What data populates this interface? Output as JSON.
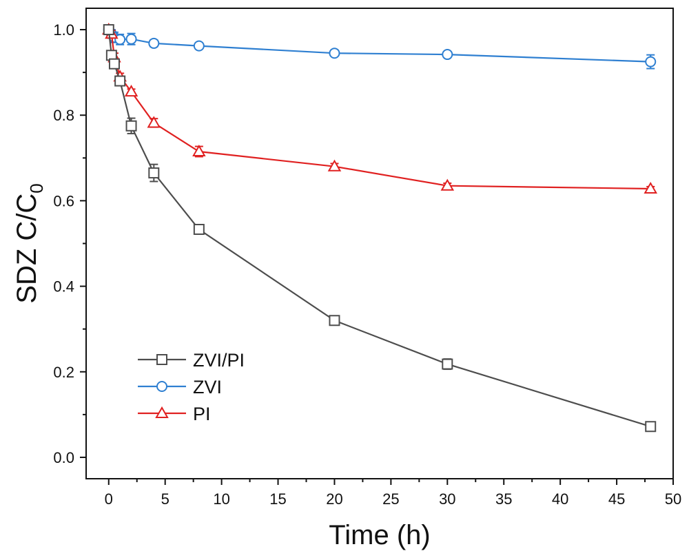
{
  "chart_data": {
    "type": "line",
    "title": "",
    "xlabel": "Time (h)",
    "ylabel_main": "SDZ C/C",
    "ylabel_sub": "0",
    "xlim": [
      -2,
      50
    ],
    "ylim": [
      -0.05,
      1.05
    ],
    "xticks": [
      0,
      5,
      10,
      15,
      20,
      25,
      30,
      35,
      40,
      45,
      50
    ],
    "xtick_labels": [
      "0",
      "5",
      "10",
      "15",
      "20",
      "25",
      "30",
      "35",
      "40",
      "45",
      "50"
    ],
    "yticks": [
      0.0,
      0.2,
      0.4,
      0.6,
      0.8,
      1.0
    ],
    "ytick_labels": [
      "0.0",
      "0.2",
      "0.4",
      "0.6",
      "0.8",
      "1.0"
    ],
    "legend_position": "bottom-left",
    "series": [
      {
        "name": "ZVI/PI",
        "color": "#4d4d4d",
        "marker": "square",
        "x": [
          0,
          0.25,
          0.5,
          1,
          2,
          4,
          8,
          20,
          30,
          48
        ],
        "y": [
          1.0,
          0.94,
          0.92,
          0.88,
          0.775,
          0.665,
          0.533,
          0.32,
          0.218,
          0.072
        ],
        "err": [
          0.005,
          0.01,
          0.01,
          0.008,
          0.018,
          0.02,
          0.008,
          0.008,
          0.012,
          0.01
        ]
      },
      {
        "name": "ZVI",
        "color": "#2e7fd1",
        "marker": "circle",
        "x": [
          0,
          0.25,
          0.5,
          1,
          2,
          4,
          8,
          20,
          30,
          48
        ],
        "y": [
          1.0,
          0.99,
          0.982,
          0.977,
          0.978,
          0.968,
          0.962,
          0.945,
          0.942,
          0.925
        ],
        "err": [
          0.004,
          0.01,
          0.012,
          0.012,
          0.013,
          0.008,
          0.007,
          0.005,
          0.005,
          0.016
        ]
      },
      {
        "name": "PI",
        "color": "#e02020",
        "marker": "triangle",
        "x": [
          0,
          0.25,
          0.5,
          1,
          2,
          4,
          8,
          20,
          30,
          48
        ],
        "y": [
          1.0,
          0.99,
          0.935,
          0.89,
          0.855,
          0.782,
          0.715,
          0.68,
          0.635,
          0.628
        ],
        "err": [
          0.004,
          0.008,
          0.01,
          0.008,
          0.006,
          0.01,
          0.012,
          0.007,
          0.006,
          0.005
        ]
      }
    ]
  }
}
